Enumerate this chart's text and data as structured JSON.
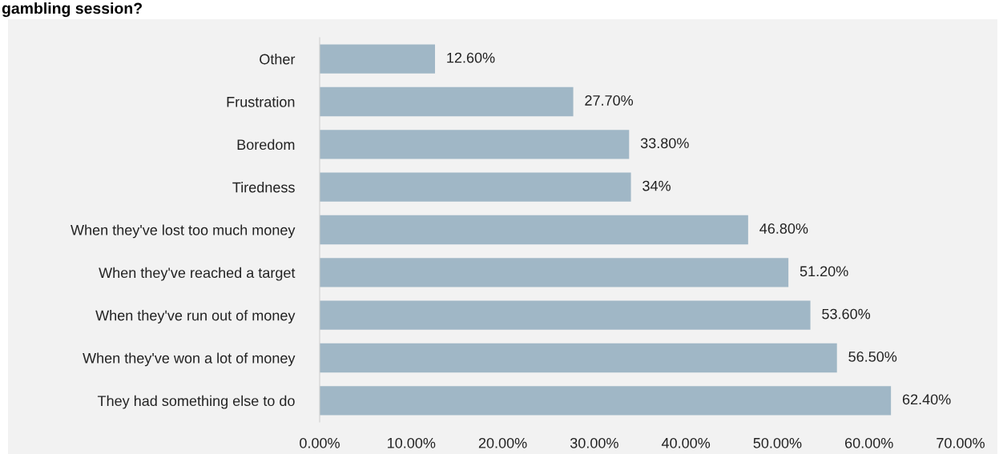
{
  "chart_data": {
    "type": "bar",
    "orientation": "horizontal",
    "title": "gambling session?",
    "categories": [
      "Other",
      "Frustration",
      "Boredom",
      "Tiredness",
      "When they've lost too much money",
      "When they've reached a target",
      "When they've run out of money",
      "When they've won a lot of money",
      "They had something else to do"
    ],
    "values": [
      12.6,
      27.7,
      33.8,
      34,
      46.8,
      51.2,
      53.6,
      56.5,
      62.4
    ],
    "value_labels": [
      "12.60%",
      "27.70%",
      "33.80%",
      "34%",
      "46.80%",
      "51.20%",
      "53.60%",
      "56.50%",
      "62.40%"
    ],
    "color": "#a0b7c6",
    "xlim": [
      0,
      70
    ],
    "xticks": [
      {
        "value": 0,
        "label": "0.00%"
      },
      {
        "value": 10,
        "label": "10.00%"
      },
      {
        "value": 20,
        "label": "20.00%"
      },
      {
        "value": 30,
        "label": "30.00%"
      },
      {
        "value": 40,
        "label": "40.00%"
      },
      {
        "value": 50,
        "label": "50.00%"
      },
      {
        "value": 60,
        "label": "60.00%"
      },
      {
        "value": 70,
        "label": "70.00%"
      }
    ],
    "grid": false,
    "legend": false
  }
}
